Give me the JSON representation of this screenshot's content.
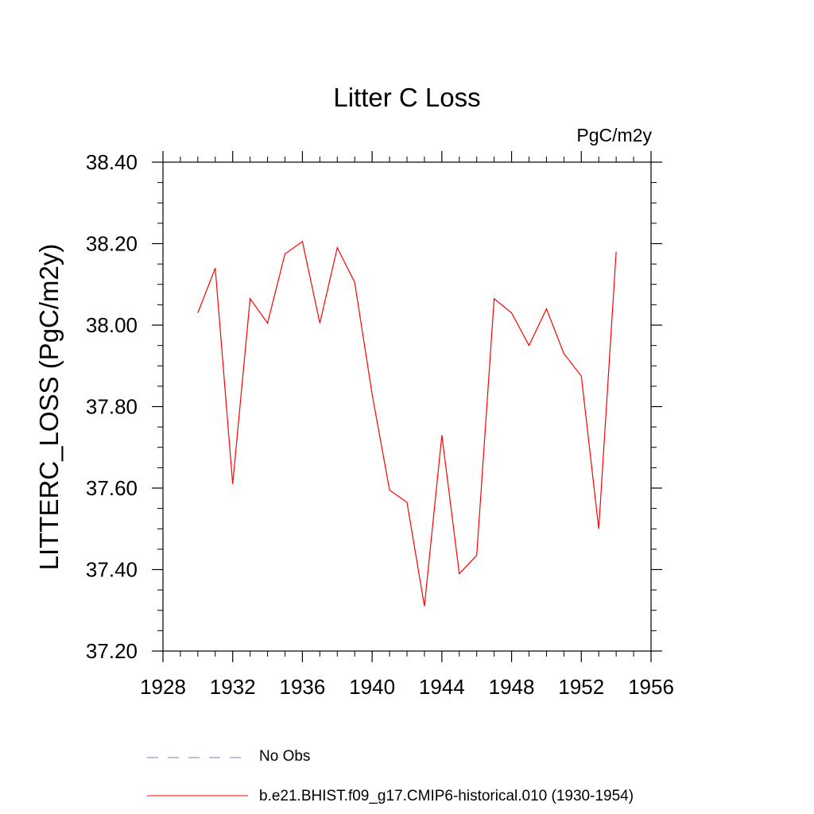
{
  "chart_data": {
    "type": "line",
    "title": "Litter C Loss",
    "units_label": "PgC/m2y",
    "ylabel": "LITTERC_LOSS  (PgC/m2y)",
    "xlabel": "",
    "xlim": [
      1928,
      1956
    ],
    "ylim": [
      37.2,
      38.4
    ],
    "x_ticks": [
      1928,
      1932,
      1936,
      1940,
      1944,
      1948,
      1952,
      1956
    ],
    "x_tick_labels": [
      "1928",
      "1932",
      "1936",
      "1940",
      "1944",
      "1948",
      "1952",
      "1956"
    ],
    "y_ticks": [
      37.2,
      37.4,
      37.6,
      37.8,
      38.0,
      38.2,
      38.4
    ],
    "y_tick_labels": [
      "37.20",
      "37.40",
      "37.60",
      "37.80",
      "38.00",
      "38.20",
      "38.40"
    ],
    "grid": false,
    "legend_position": "bottom",
    "series": [
      {
        "name": "b.e21.BHIST.f09_g17.CMIP6-historical.010 (1930-1954)",
        "color": "#ff0000",
        "style": "solid",
        "x": [
          1930,
          1931,
          1932,
          1933,
          1934,
          1935,
          1936,
          1937,
          1938,
          1939,
          1940,
          1941,
          1942,
          1943,
          1944,
          1945,
          1946,
          1947,
          1948,
          1949,
          1950,
          1951,
          1952,
          1953,
          1954
        ],
        "y": [
          38.03,
          38.14,
          37.61,
          38.065,
          38.005,
          38.175,
          38.205,
          38.005,
          38.19,
          38.105,
          37.83,
          37.595,
          37.565,
          37.31,
          37.73,
          37.39,
          37.435,
          38.065,
          38.03,
          37.95,
          38.04,
          37.93,
          37.875,
          37.5,
          38.18
        ]
      }
    ],
    "legend": [
      {
        "label": "No Obs",
        "color": "#7b7bc0",
        "style": "dashed"
      },
      {
        "label": "b.e21.BHIST.f09_g17.CMIP6-historical.010 (1930-1954)",
        "color": "#ff0000",
        "style": "solid"
      }
    ]
  }
}
